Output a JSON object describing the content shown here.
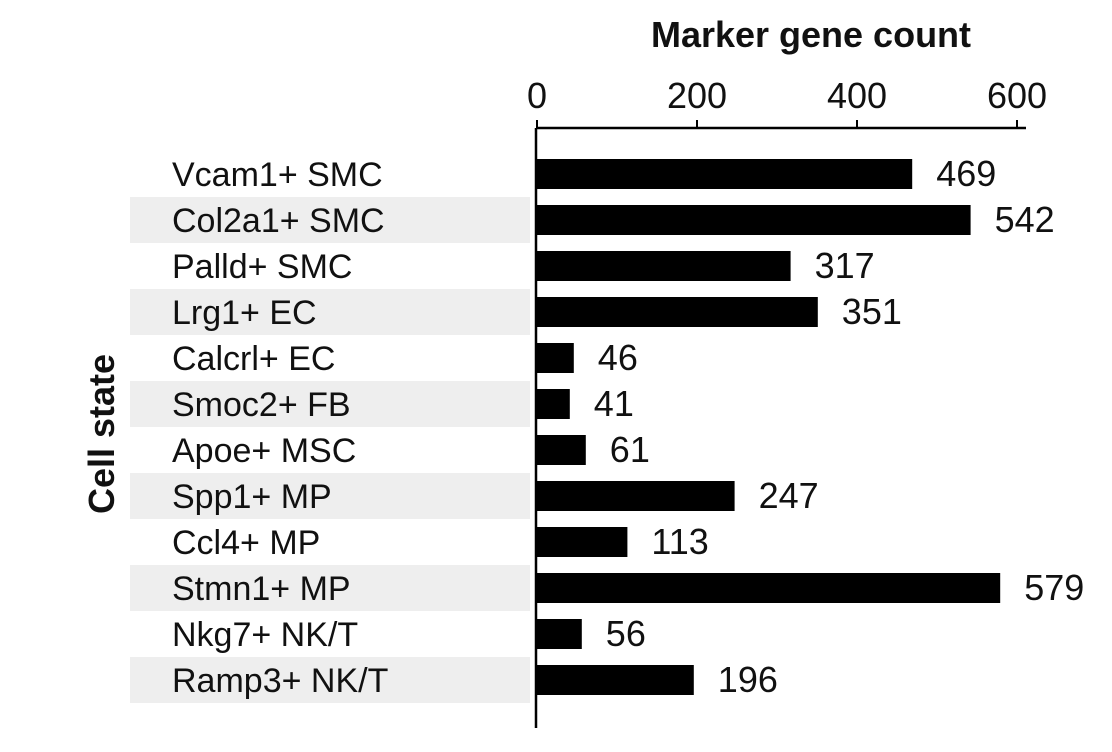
{
  "chart_data": {
    "type": "bar",
    "orientation": "horizontal",
    "title": "Marker gene count",
    "xlabel": "Marker gene count",
    "ylabel": "Cell state",
    "xlim": [
      0,
      600
    ],
    "xticks": [
      0,
      200,
      400,
      600
    ],
    "x_axis_position": "top",
    "grid": false,
    "categories": [
      "Vcam1+ SMC",
      "Col2a1+ SMC",
      "Palld+ SMC",
      "Lrg1+ EC",
      "Calcrl+ EC",
      "Smoc2+ FB",
      "Apoe+ MSC",
      "Spp1+ MP",
      "Ccl4+ MP",
      "Stmn1+ MP",
      "Nkg7+ NK/T",
      "Ramp3+ NK/T"
    ],
    "values": [
      469,
      542,
      317,
      351,
      46,
      41,
      61,
      247,
      113,
      579,
      56,
      196
    ],
    "bar_color": "#000000",
    "alternate_row_shading": "#eeeeee"
  }
}
